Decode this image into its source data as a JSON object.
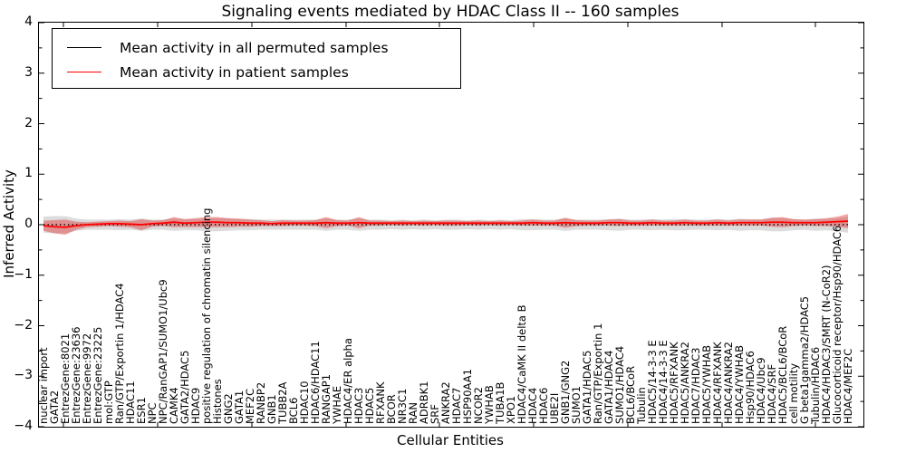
{
  "title": "Signaling events mediated by HDAC Class II -- 160 samples",
  "axes": {
    "x_label": "Cellular Entities",
    "y_label": "Inferred Activity",
    "y_ticks": [
      "4",
      "3",
      "2",
      "1",
      "0",
      "−1",
      "−2",
      "−3",
      "−4"
    ],
    "ylim": [
      -4,
      4
    ]
  },
  "legend": {
    "items": [
      {
        "label": "Mean activity in all permuted samples",
        "color": "#000000"
      },
      {
        "label": "Mean activity in patient samples",
        "color": "#ff0000"
      }
    ]
  },
  "chart_data": {
    "type": "line",
    "title": "Signaling events mediated by HDAC Class II -- 160 samples",
    "xlabel": "Cellular Entities",
    "ylabel": "Inferred Activity",
    "ylim": [
      -4,
      4
    ],
    "grid": false,
    "legend_position": "upper left",
    "categories": [
      "nuclear import",
      "GATA2",
      "EntrezGene:8021",
      "EntrezGene:23636",
      "EntrezGene:9972",
      "EntrezGene:23225",
      "mol:GTP",
      "Ran/GTP/Exportin 1/HDAC4",
      "HDAC11",
      "ESR1",
      "NPC",
      "NPC/RanGAP1/SUMO1/Ubc9",
      "CAMK4",
      "GATA2/HDAC5",
      "HDAC9",
      "positive regulation of chromatin silencing",
      "Histones",
      "GNG2",
      "GATA1",
      "MEF2C",
      "RANBP2",
      "GNB1",
      "TUBB2A",
      "BCL6",
      "HDAC10",
      "HDAC6/HDAC11",
      "RANGAP1",
      "YWHAE",
      "HDAC4/ER alpha",
      "HDAC3",
      "HDAC5",
      "RFXANK",
      "BCOR",
      "NR3C1",
      "RAN",
      "ADRBK1",
      "SRF",
      "ANKRA2",
      "HDAC7",
      "HSP90AA1",
      "NCOR2",
      "YWHAB",
      "TUBA1B",
      "XPO1",
      "HDAC4/CaMK II delta B",
      "HDAC4",
      "HDAC6",
      "UBE2I",
      "GNB1/GNG2",
      "SUMO1",
      "GATA1/HDAC5",
      "Ran/GTP/Exportin 1",
      "GATA1/HDAC4",
      "SUMO1/HDAC4",
      "BCL6/BCoR",
      "Tubulin",
      "HDAC5/14-3-3 E",
      "HDAC4/14-3-3 E",
      "HDAC5/RFXANK",
      "HDAC5/ANKRA2",
      "HDAC7/HDAC3",
      "HDAC5/YWHAB",
      "HDAC4/RFXANK",
      "HDAC4/ANKRA2",
      "HDAC4/YWHAB",
      "Hsp90/HDAC6",
      "HDAC4/Ubc9",
      "HDAC4/SRF",
      "HDAC5/BCL6/BCoR",
      "cell motility",
      "G beta1gamma2/HDAC5",
      "Tubulin/HDAC6",
      "HDAC4/HDAC3/SMRT (N-CoR2)",
      "Glucocorticoid receptor/Hsp90/HDAC6",
      "HDAC4/MEF2C"
    ],
    "series": [
      {
        "name": "Mean activity in all permuted samples",
        "color": "#000000",
        "style": "dotted",
        "values": [
          0,
          0,
          0,
          0,
          0,
          0,
          0,
          0,
          0,
          0,
          0,
          0,
          0,
          0,
          0,
          0,
          0,
          0,
          0,
          0,
          0,
          0,
          0,
          0,
          0,
          0,
          0,
          0,
          0,
          0,
          0,
          0,
          0,
          0,
          0,
          0,
          0,
          0,
          0,
          0,
          0,
          0,
          0,
          0,
          0,
          0,
          0,
          0,
          0,
          0,
          0,
          0,
          0,
          0,
          0,
          0,
          0,
          0,
          0,
          0,
          0,
          0,
          0,
          0,
          0,
          0,
          0,
          0,
          0,
          0,
          0,
          0,
          0,
          0,
          0
        ]
      },
      {
        "name": "Mean activity in patient samples",
        "color": "#ff0000",
        "style": "solid",
        "values": [
          -0.02,
          -0.04,
          -0.05,
          -0.02,
          0.0,
          0.01,
          0.02,
          0.02,
          0.01,
          0.0,
          0.02,
          0.03,
          0.05,
          0.03,
          0.04,
          0.05,
          0.05,
          0.04,
          0.04,
          0.03,
          0.03,
          0.02,
          0.03,
          0.03,
          0.03,
          0.03,
          0.04,
          0.03,
          0.03,
          0.04,
          0.03,
          0.03,
          0.03,
          0.03,
          0.03,
          0.03,
          0.03,
          0.03,
          0.03,
          0.03,
          0.03,
          0.03,
          0.03,
          0.03,
          0.03,
          0.04,
          0.03,
          0.03,
          0.04,
          0.03,
          0.03,
          0.03,
          0.04,
          0.04,
          0.03,
          0.03,
          0.04,
          0.03,
          0.03,
          0.04,
          0.03,
          0.03,
          0.04,
          0.03,
          0.04,
          0.04,
          0.04,
          0.05,
          0.05,
          0.04,
          0.04,
          0.04,
          0.05,
          0.06,
          0.07
        ]
      }
    ],
    "bands": [
      {
        "series": "Mean activity in all permuted samples",
        "color": "#808080",
        "opacity": 0.28,
        "half_width": [
          0.16,
          0.17,
          0.17,
          0.12,
          0.1,
          0.1,
          0.1,
          0.11,
          0.1,
          0.12,
          0.1,
          0.1,
          0.12,
          0.11,
          0.11,
          0.13,
          0.13,
          0.12,
          0.11,
          0.11,
          0.1,
          0.1,
          0.1,
          0.1,
          0.1,
          0.1,
          0.12,
          0.1,
          0.1,
          0.12,
          0.1,
          0.1,
          0.09,
          0.1,
          0.09,
          0.1,
          0.09,
          0.1,
          0.1,
          0.09,
          0.1,
          0.09,
          0.1,
          0.09,
          0.11,
          0.11,
          0.1,
          0.1,
          0.12,
          0.1,
          0.1,
          0.1,
          0.11,
          0.12,
          0.1,
          0.1,
          0.11,
          0.1,
          0.11,
          0.11,
          0.1,
          0.1,
          0.11,
          0.1,
          0.12,
          0.11,
          0.11,
          0.13,
          0.13,
          0.11,
          0.1,
          0.12,
          0.11,
          0.13,
          0.16
        ]
      },
      {
        "series": "Mean activity in patient samples",
        "color": "#e02020",
        "opacity": 0.4,
        "half_width": [
          0.1,
          0.13,
          0.15,
          0.08,
          0.05,
          0.05,
          0.05,
          0.06,
          0.06,
          0.11,
          0.06,
          0.06,
          0.1,
          0.08,
          0.09,
          0.1,
          0.1,
          0.09,
          0.08,
          0.07,
          0.06,
          0.05,
          0.06,
          0.05,
          0.05,
          0.06,
          0.11,
          0.06,
          0.05,
          0.11,
          0.05,
          0.05,
          0.04,
          0.05,
          0.04,
          0.05,
          0.04,
          0.05,
          0.05,
          0.04,
          0.05,
          0.04,
          0.05,
          0.04,
          0.05,
          0.06,
          0.05,
          0.05,
          0.1,
          0.06,
          0.05,
          0.05,
          0.06,
          0.07,
          0.05,
          0.05,
          0.06,
          0.05,
          0.05,
          0.06,
          0.05,
          0.05,
          0.06,
          0.05,
          0.06,
          0.06,
          0.06,
          0.09,
          0.1,
          0.07,
          0.06,
          0.07,
          0.08,
          0.1,
          0.14
        ]
      }
    ]
  }
}
